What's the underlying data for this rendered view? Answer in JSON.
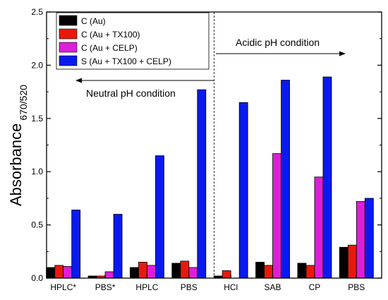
{
  "chart_data": {
    "type": "bar",
    "categories": [
      "HPLC*",
      "PBS*",
      "HPLC",
      "PBS",
      "HCl",
      "SAB",
      "CP",
      "PBS"
    ],
    "series": [
      {
        "name": "C (Au)",
        "color": "#000000",
        "values": [
          0.1,
          0.02,
          0.1,
          0.14,
          0.02,
          0.15,
          0.14,
          0.29
        ]
      },
      {
        "name": "C (Au + TX100)",
        "color": "#e8190c",
        "values": [
          0.12,
          0.02,
          0.15,
          0.16,
          0.07,
          0.12,
          0.12,
          0.31
        ]
      },
      {
        "name": "C (Au + CELP)",
        "color": "#dd1ed9",
        "values": [
          0.11,
          0.06,
          0.12,
          0.1,
          0.0,
          1.17,
          0.95,
          0.72
        ]
      },
      {
        "name": "S (Au + TX100 + CELP)",
        "color": "#0a1aec",
        "values": [
          0.64,
          0.6,
          1.15,
          1.77,
          1.65,
          1.86,
          1.89,
          0.75
        ]
      }
    ],
    "ylabel_main": "Absorbance",
    "ylabel_sub": "670/520",
    "xlabel": "",
    "ylim": [
      0,
      2.5
    ],
    "yticks": [
      "0.0",
      "0.5",
      "1.0",
      "1.5",
      "2.0",
      "2.5"
    ],
    "grid": false,
    "legend_position": "top-left",
    "divider_after_category_index": 3,
    "annotations": {
      "acidic": "Acidic pH condition",
      "neutral": "Neutral pH condition"
    }
  }
}
